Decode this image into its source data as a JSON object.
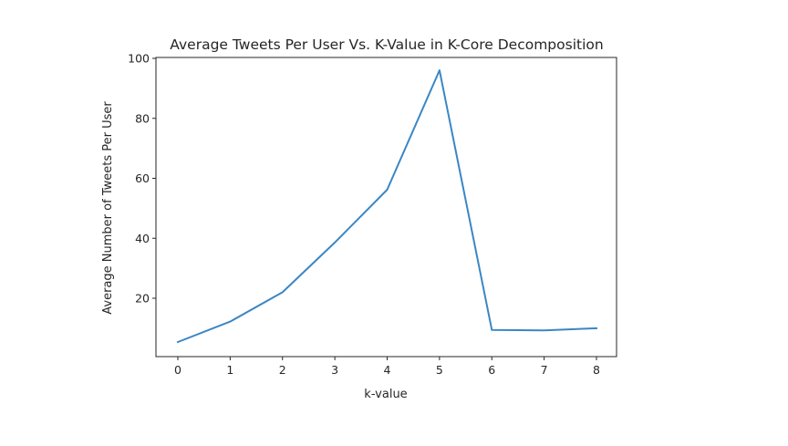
{
  "chart_data": {
    "type": "line",
    "title": "Average Tweets Per User Vs. K-Value in K-Core Decomposition",
    "xlabel": "k-value",
    "ylabel": "Average Number of Tweets Per User",
    "x": [
      0,
      1,
      2,
      3,
      4,
      5,
      6,
      7,
      8
    ],
    "series": [
      {
        "name": "Average Tweets Per User",
        "color": "#3b86c4",
        "values": [
          5.4,
          12.2,
          22.0,
          38.6,
          56.2,
          96.0,
          9.4,
          9.3,
          10.0
        ]
      }
    ],
    "xlim": [
      -0.4,
      8.4
    ],
    "ylim": [
      0.5,
      100
    ],
    "xticks": [
      0,
      1,
      2,
      3,
      4,
      5,
      6,
      7,
      8
    ],
    "yticks": [
      20,
      40,
      60,
      80,
      100
    ],
    "grid": false,
    "legend": "none"
  }
}
